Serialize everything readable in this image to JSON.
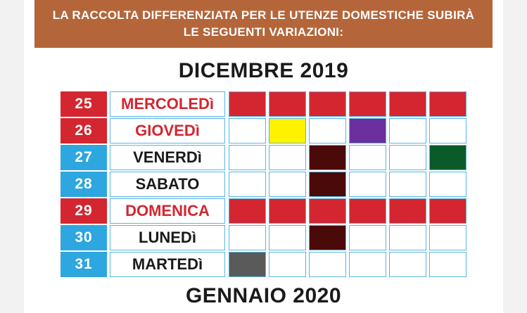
{
  "header": {
    "line1": "LA RACCOLTA DIFFERENZIATA PER LE UTENZE DOMESTICHE SUBIRÀ",
    "line2": "LE SEGUENTI VARIAZIONI:"
  },
  "month_current": "DICEMBRE 2019",
  "month_next": "GENNAIO 2020",
  "colors": {
    "banner": "#b4663a",
    "red_day": "#d32630",
    "blue_day": "#2ea6df",
    "border": "#58b5e0"
  },
  "rows": [
    {
      "num": "25",
      "day": "MERCOLEDì",
      "holiday": true,
      "cells": [
        "#d32630",
        "#d32630",
        "#d32630",
        "#d32630",
        "#d32630",
        "#d32630"
      ]
    },
    {
      "num": "26",
      "day": "GIOVEDì",
      "holiday": true,
      "cells": [
        "",
        "#fff200",
        "",
        "#6b2f9e",
        "",
        ""
      ]
    },
    {
      "num": "27",
      "day": "VENERDì",
      "holiday": false,
      "cells": [
        "",
        "",
        "#4a0a0a",
        "",
        "",
        "#0b5a2a"
      ]
    },
    {
      "num": "28",
      "day": "SABATO",
      "holiday": false,
      "cells": [
        "",
        "",
        "#4a0a0a",
        "",
        "",
        ""
      ]
    },
    {
      "num": "29",
      "day": "DOMENICA",
      "holiday": true,
      "cells": [
        "#d32630",
        "#d32630",
        "#d32630",
        "#d32630",
        "#d32630",
        "#d32630"
      ]
    },
    {
      "num": "30",
      "day": "LUNEDì",
      "holiday": false,
      "cells": [
        "",
        "",
        "#4a0a0a",
        "",
        "",
        ""
      ]
    },
    {
      "num": "31",
      "day": "MARTEDì",
      "holiday": false,
      "cells": [
        "#5a5a5a",
        "",
        "",
        "",
        "",
        ""
      ]
    }
  ]
}
